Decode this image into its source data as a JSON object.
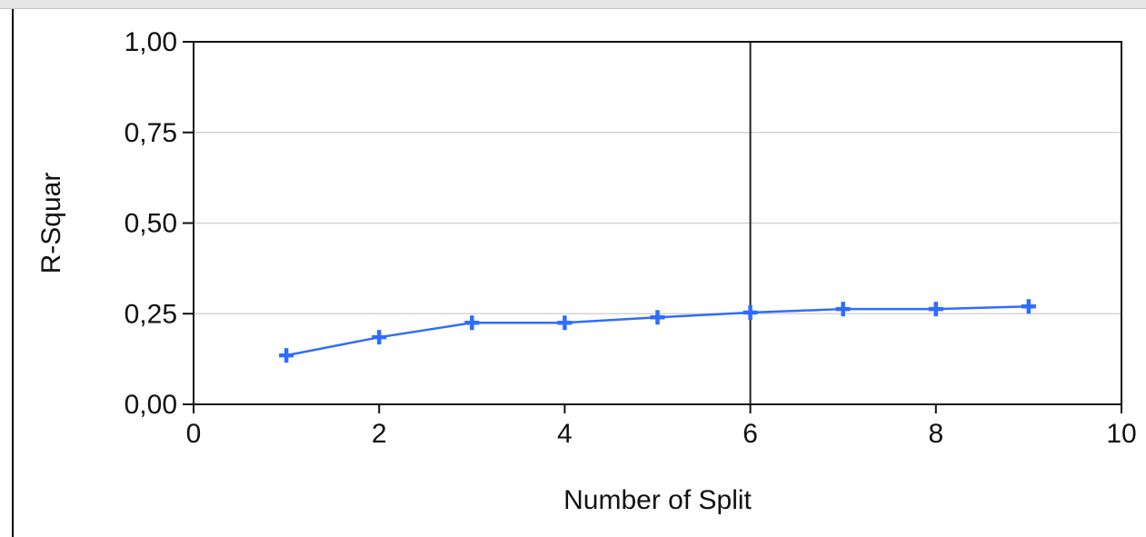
{
  "chart_data": {
    "type": "line",
    "title": "",
    "xlabel": "Number of Split",
    "ylabel": "R-Squar",
    "xlim": [
      0,
      10
    ],
    "ylim": [
      0,
      1
    ],
    "x_ticks": [
      0,
      2,
      4,
      6,
      8,
      10
    ],
    "x_tick_labels": [
      "0",
      "2",
      "4",
      "6",
      "8",
      "10"
    ],
    "y_ticks": [
      0,
      0.25,
      0.5,
      0.75,
      1
    ],
    "y_tick_labels": [
      "0,00",
      "0,25",
      "0,50",
      "0,75",
      "1,00"
    ],
    "grid": "horizontal",
    "reference_line_x": 6,
    "marker": "plus",
    "series": [
      {
        "color": "#2f6cff",
        "x": [
          1,
          2,
          3,
          4,
          5,
          6,
          7,
          8,
          9
        ],
        "y": [
          0.135,
          0.185,
          0.225,
          0.225,
          0.24,
          0.253,
          0.263,
          0.263,
          0.27
        ]
      }
    ]
  }
}
